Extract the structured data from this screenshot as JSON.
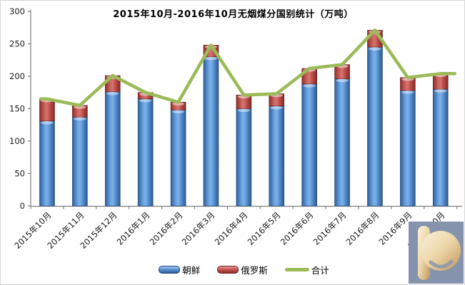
{
  "title": "2015年10月-2016年10月无烟煤分国别统计（万吨）",
  "legend": {
    "items": [
      {
        "label": "朝鲜",
        "type": "bar",
        "color": "#4a7ebb"
      },
      {
        "label": "俄罗斯",
        "type": "bar",
        "color": "#be4b48"
      },
      {
        "label": "合计",
        "type": "line",
        "color": "#9bbb59"
      }
    ]
  },
  "chart_data": {
    "type": "bar",
    "combo": "stacked bars + total line",
    "stacked": true,
    "title": "2015年10月-2016年10月无烟煤分国别统计（万吨）",
    "categories": [
      "2015年10月",
      "2015年11月",
      "2015年12月",
      "2016年1月",
      "2016年2月",
      "2016年3月",
      "2016年4月",
      "2016年5月",
      "2016年6月",
      "2016年7月",
      "2016年8月",
      "2016年9月",
      "2016年10月"
    ],
    "series": [
      {
        "name": "朝鲜",
        "type": "bar",
        "color": "#4a7ebb",
        "values": [
          131,
          137,
          176,
          165,
          148,
          230,
          150,
          154,
          188,
          196,
          245,
          178,
          180
        ]
      },
      {
        "name": "俄罗斯",
        "type": "bar",
        "color": "#be4b48",
        "values": [
          34,
          18,
          25,
          10,
          12,
          18,
          21,
          19,
          24,
          22,
          26,
          20,
          24
        ]
      },
      {
        "name": "合计",
        "type": "line",
        "color": "#9bbb59",
        "values": [
          165,
          155,
          201,
          175,
          160,
          248,
          171,
          173,
          212,
          218,
          271,
          198,
          204
        ]
      }
    ],
    "xlabel": "",
    "ylabel": "",
    "ylim": [
      0,
      300
    ],
    "yticks": [
      0,
      50,
      100,
      150,
      200,
      250,
      300
    ],
    "grid": false,
    "legend_position": "bottom",
    "axis_color": "#7f7f7f",
    "tick_label_color": "#1a1a1a"
  },
  "watermark": {
    "icon": "p-logo",
    "letter": "P",
    "bg_color": "#8593ac",
    "fg_color": "#ecd6a8"
  }
}
